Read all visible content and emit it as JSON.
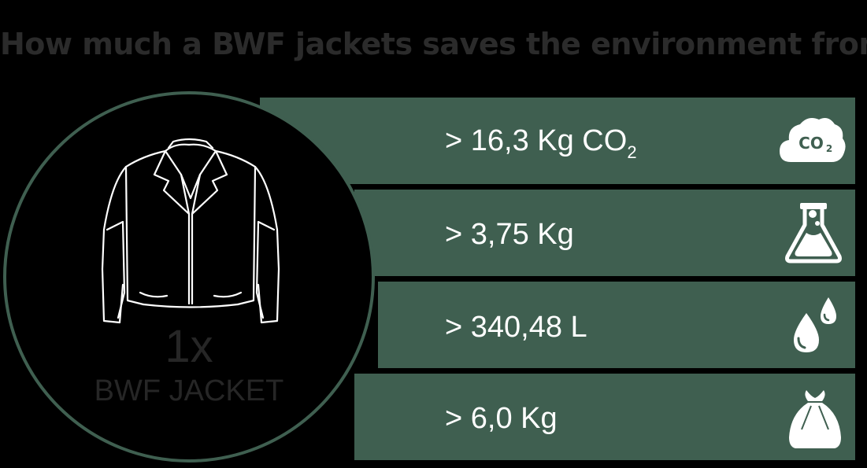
{
  "title": "How much a BWF jackets saves the environment from",
  "product": {
    "quantity": "1x",
    "name": "BWF JACKET",
    "icon": "jacket-icon"
  },
  "stats": [
    {
      "prefix": "> 16,3 Kg CO",
      "subscript": "2",
      "icon": "co2-cloud-icon",
      "icon_text": "CO2"
    },
    {
      "prefix": "> 3,75 Kg",
      "subscript": "",
      "icon": "chemical-flask-icon"
    },
    {
      "prefix": "> 340,48 L",
      "subscript": "",
      "icon": "water-drops-icon"
    },
    {
      "prefix": "> 6,0 Kg",
      "subscript": "",
      "icon": "trash-bag-icon"
    }
  ],
  "colors": {
    "background": "#000000",
    "band": "#3f5f50",
    "text_on_band": "#ffffff",
    "dark_text": "#262626"
  }
}
